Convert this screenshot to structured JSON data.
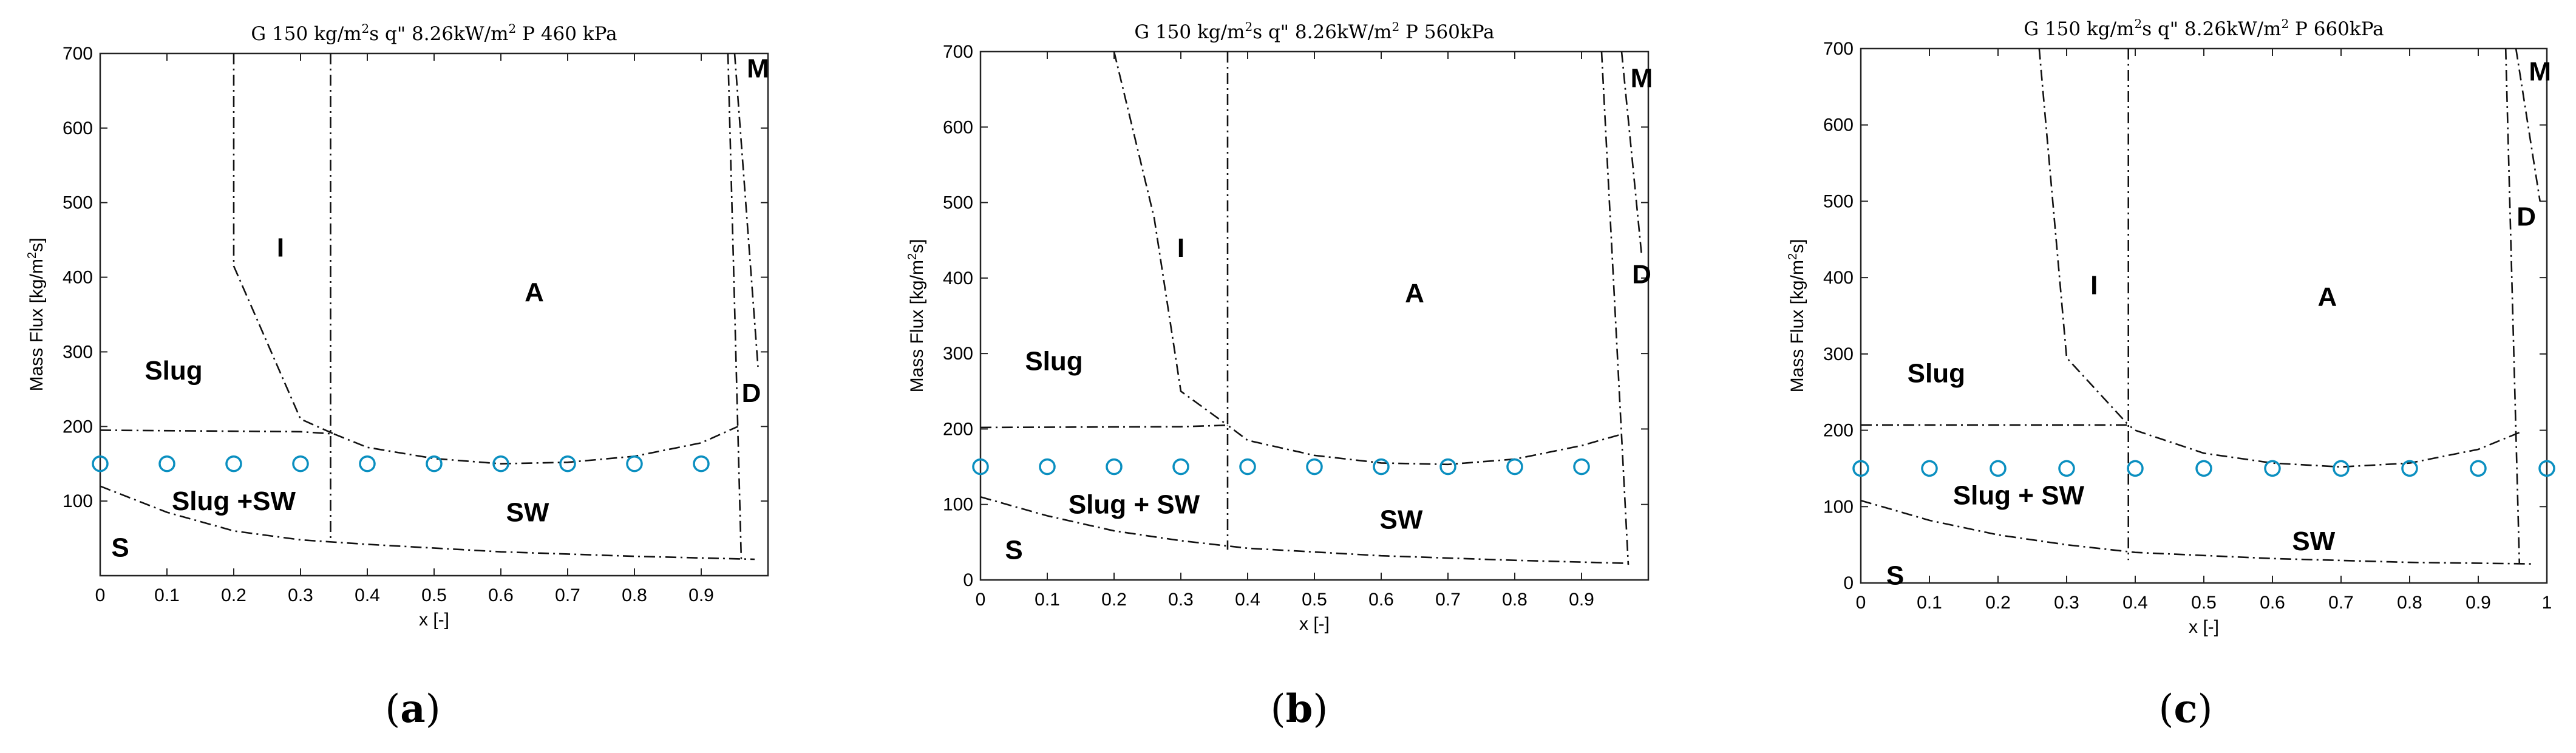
{
  "chart_data": [
    {
      "type": "flow-pattern-map",
      "panel_label": "a",
      "title": "G 150 kg/m2s  q\" 8.26kW/m2  P 460 kPa",
      "title_parts": {
        "pre": "G 150 kg/m",
        "sup1": "2",
        "mid": "s  q\" 8.26kW/m",
        "sup2": "2",
        "post": "  P 460 kPa"
      },
      "xlabel": "x [-]",
      "ylabel": {
        "pre": "Mass Flux [kg/m",
        "sup": "2",
        "post": "s]"
      },
      "xlim": [
        0,
        1.0
      ],
      "ylim": [
        0,
        700
      ],
      "xticks": [
        0,
        0.1,
        0.2,
        0.3,
        0.4,
        0.5,
        0.6,
        0.7,
        0.8,
        0.9
      ],
      "yticks": [
        100,
        200,
        300,
        400,
        500,
        600,
        700
      ],
      "boundaries": [
        {
          "name": "slug-intermittent-lower",
          "points": [
            [
              0,
              195
            ],
            [
              0.3,
              193
            ],
            [
              0.35,
              190
            ],
            [
              0.4,
              172
            ],
            [
              0.5,
              157
            ],
            [
              0.6,
              150
            ],
            [
              0.7,
              152
            ],
            [
              0.8,
              160
            ],
            [
              0.9,
              178
            ],
            [
              0.955,
              200
            ]
          ]
        },
        {
          "name": "stratified-upper",
          "points": [
            [
              0,
              120
            ],
            [
              0.1,
              85
            ],
            [
              0.2,
              60
            ],
            [
              0.3,
              48
            ],
            [
              0.4,
              42
            ],
            [
              0.6,
              32
            ],
            [
              0.8,
              26
            ],
            [
              0.98,
              22
            ]
          ]
        },
        {
          "name": "slug-intermittent",
          "points": [
            [
              0.2,
              700
            ],
            [
              0.2,
              415
            ],
            [
              0.3,
              210
            ],
            [
              0.35,
              190
            ]
          ]
        },
        {
          "name": "intermittent-annular",
          "points": [
            [
              0.345,
              700
            ],
            [
              0.345,
              45
            ]
          ]
        },
        {
          "name": "annular-dryout",
          "points": [
            [
              0.94,
              700
            ],
            [
              0.96,
              20
            ]
          ]
        },
        {
          "name": "dryout-mist",
          "points": [
            [
              0.95,
              700
            ],
            [
              0.985,
              280
            ]
          ]
        }
      ],
      "regions": [
        {
          "label": "I",
          "x": 0.27,
          "y": 440
        },
        {
          "label": "A",
          "x": 0.65,
          "y": 380
        },
        {
          "label": "Slug",
          "x": 0.11,
          "y": 275
        },
        {
          "label": "Slug +SW",
          "x": 0.2,
          "y": 100
        },
        {
          "label": "SW",
          "x": 0.64,
          "y": 85
        },
        {
          "label": "S",
          "x": 0.03,
          "y": 38
        },
        {
          "label": "M",
          "x": 0.985,
          "y": 680
        },
        {
          "label": "D",
          "x": 0.975,
          "y": 245
        }
      ],
      "experimental_points": {
        "color": "#0a8fc0",
        "x": [
          0,
          0.1,
          0.2,
          0.3,
          0.4,
          0.5,
          0.6,
          0.7,
          0.8,
          0.9
        ],
        "y": [
          150,
          150,
          150,
          150,
          150,
          150,
          150,
          150,
          150,
          150
        ]
      }
    },
    {
      "type": "flow-pattern-map",
      "panel_label": "b",
      "title": "G 150 kg/m2s  q\" 8.26kW/m2  P 560kPa",
      "title_parts": {
        "pre": "G 150 kg/m",
        "sup1": "2",
        "mid": "s  q\" 8.26kW/m",
        "sup2": "2",
        "post": "  P 560kPa"
      },
      "xlabel": "x [-]",
      "ylabel": {
        "pre": "Mass Flux [kg/m",
        "sup": "2",
        "post": "s]"
      },
      "xlim": [
        0,
        1.0
      ],
      "ylim": [
        0,
        700
      ],
      "xticks": [
        0,
        0.1,
        0.2,
        0.3,
        0.4,
        0.5,
        0.6,
        0.7,
        0.8,
        0.9
      ],
      "yticks": [
        0,
        100,
        200,
        300,
        400,
        500,
        600,
        700
      ],
      "boundaries": [
        {
          "name": "slug-intermittent-lower",
          "points": [
            [
              0,
              202
            ],
            [
              0.3,
              203
            ],
            [
              0.37,
              205
            ],
            [
              0.4,
              185
            ],
            [
              0.5,
              165
            ],
            [
              0.6,
              155
            ],
            [
              0.7,
              153
            ],
            [
              0.8,
              160
            ],
            [
              0.9,
              178
            ],
            [
              0.96,
              193
            ]
          ]
        },
        {
          "name": "stratified-upper",
          "points": [
            [
              0,
              110
            ],
            [
              0.1,
              85
            ],
            [
              0.2,
              65
            ],
            [
              0.3,
              52
            ],
            [
              0.4,
              42
            ],
            [
              0.6,
              32
            ],
            [
              0.8,
              26
            ],
            [
              0.97,
              22
            ]
          ]
        },
        {
          "name": "slug-intermittent",
          "points": [
            [
              0.2,
              700
            ],
            [
              0.26,
              480
            ],
            [
              0.3,
              250
            ],
            [
              0.37,
              205
            ]
          ]
        },
        {
          "name": "intermittent-annular",
          "points": [
            [
              0.37,
              700
            ],
            [
              0.37,
              40
            ]
          ]
        },
        {
          "name": "annular-dryout",
          "points": [
            [
              0.93,
              700
            ],
            [
              0.97,
              20
            ]
          ]
        },
        {
          "name": "dryout-mist",
          "points": [
            [
              0.96,
              700
            ],
            [
              0.99,
              430
            ]
          ]
        }
      ],
      "regions": [
        {
          "label": "I",
          "x": 0.3,
          "y": 440
        },
        {
          "label": "A",
          "x": 0.65,
          "y": 380
        },
        {
          "label": "Slug",
          "x": 0.11,
          "y": 290
        },
        {
          "label": "Slug + SW",
          "x": 0.23,
          "y": 100
        },
        {
          "label": "SW",
          "x": 0.63,
          "y": 80
        },
        {
          "label": "S",
          "x": 0.05,
          "y": 40
        },
        {
          "label": "M",
          "x": 0.99,
          "y": 665
        },
        {
          "label": "D",
          "x": 0.99,
          "y": 405
        }
      ],
      "experimental_points": {
        "color": "#0a8fc0",
        "x": [
          0,
          0.1,
          0.2,
          0.3,
          0.4,
          0.5,
          0.6,
          0.7,
          0.8,
          0.9
        ],
        "y": [
          150,
          150,
          150,
          150,
          150,
          150,
          150,
          150,
          150,
          150
        ]
      }
    },
    {
      "type": "flow-pattern-map",
      "panel_label": "c",
      "title": "G 150 kg/m2s  q\" 8.26kW/m2  P 660kPa",
      "title_parts": {
        "pre": "G 150 kg/m",
        "sup1": "2",
        "mid": "s  q\" 8.26kW/m",
        "sup2": "2",
        "post": "  P 660kPa"
      },
      "xlabel": "x [-]",
      "ylabel": {
        "pre": "Mass Flux [kg/m",
        "sup": "2",
        "post": "s]"
      },
      "xlim": [
        0,
        1.0
      ],
      "ylim": [
        0,
        700
      ],
      "xticks": [
        0,
        0.1,
        0.2,
        0.3,
        0.4,
        0.5,
        0.6,
        0.7,
        0.8,
        0.9,
        1
      ],
      "yticks": [
        0,
        100,
        200,
        300,
        400,
        500,
        600,
        700
      ],
      "boundaries": [
        {
          "name": "slug-intermittent-lower",
          "points": [
            [
              0,
              207
            ],
            [
              0.3,
              207
            ],
            [
              0.39,
              207
            ],
            [
              0.4,
              200
            ],
            [
              0.5,
              170
            ],
            [
              0.6,
              157
            ],
            [
              0.7,
              152
            ],
            [
              0.8,
              157
            ],
            [
              0.9,
              175
            ],
            [
              0.96,
              197
            ]
          ]
        },
        {
          "name": "stratified-upper",
          "points": [
            [
              0,
              108
            ],
            [
              0.1,
              82
            ],
            [
              0.2,
              63
            ],
            [
              0.3,
              50
            ],
            [
              0.4,
              40
            ],
            [
              0.6,
              32
            ],
            [
              0.8,
              27
            ],
            [
              0.98,
              25
            ]
          ]
        },
        {
          "name": "slug-intermittent",
          "points": [
            [
              0.26,
              700
            ],
            [
              0.3,
              295
            ],
            [
              0.39,
              207
            ]
          ]
        },
        {
          "name": "intermittent-annular",
          "points": [
            [
              0.39,
              700
            ],
            [
              0.39,
              30
            ]
          ]
        },
        {
          "name": "annular-dryout",
          "points": [
            [
              0.94,
              700
            ],
            [
              0.96,
              25
            ]
          ]
        },
        {
          "name": "dryout-mist",
          "points": [
            [
              0.955,
              700
            ],
            [
              0.99,
              500
            ]
          ]
        }
      ],
      "regions": [
        {
          "label": "I",
          "x": 0.34,
          "y": 390
        },
        {
          "label": "A",
          "x": 0.68,
          "y": 375
        },
        {
          "label": "Slug",
          "x": 0.11,
          "y": 275
        },
        {
          "label": "Slug + SW",
          "x": 0.23,
          "y": 115
        },
        {
          "label": "SW",
          "x": 0.66,
          "y": 55
        },
        {
          "label": "S",
          "x": 0.05,
          "y": 10
        },
        {
          "label": "M",
          "x": 0.99,
          "y": 670
        },
        {
          "label": "D",
          "x": 0.97,
          "y": 480
        }
      ],
      "experimental_points": {
        "color": "#0a8fc0",
        "x": [
          0,
          0.1,
          0.2,
          0.3,
          0.4,
          0.5,
          0.6,
          0.7,
          0.8,
          0.9,
          1.0
        ],
        "y": [
          150,
          150,
          150,
          150,
          150,
          150,
          150,
          150,
          150,
          150,
          150
        ]
      }
    }
  ]
}
